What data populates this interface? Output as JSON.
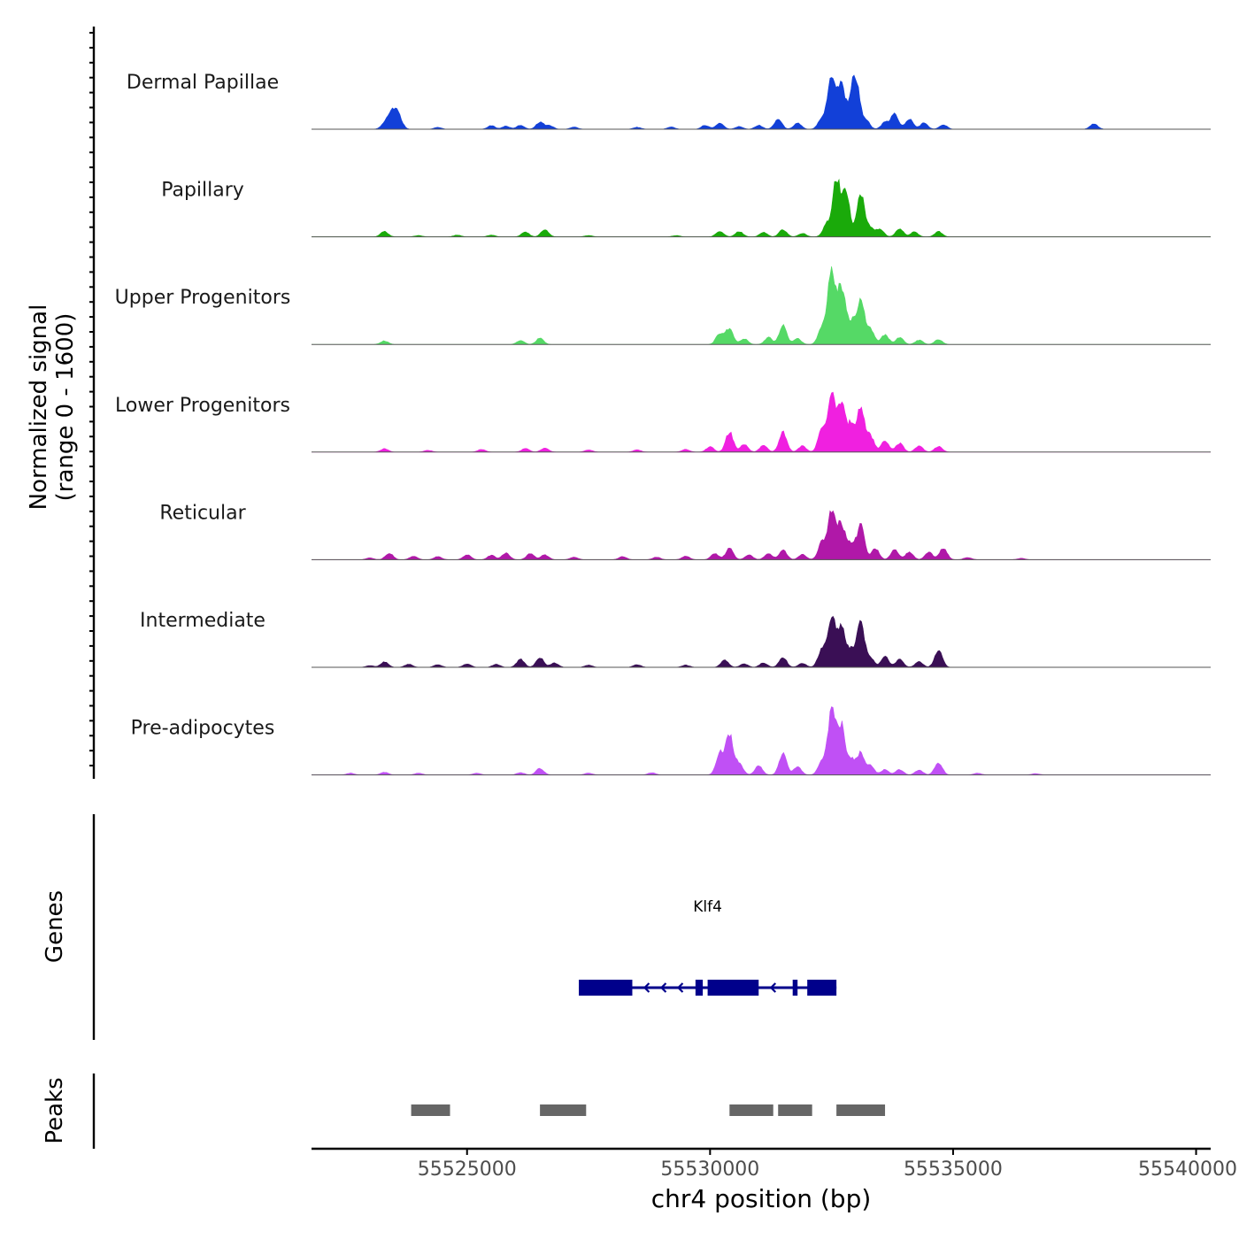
{
  "chart_data": {
    "type": "area",
    "title": "",
    "chromosome": "chr4",
    "xlabel": "chr4 position (bp)",
    "ylabel_line1": "Normalized signal",
    "ylabel_line2": "(range 0 - 1600)",
    "y_range": [
      0,
      1600
    ],
    "x_range": [
      55521800,
      55540300
    ],
    "x_ticks": [
      {
        "value": 55525000,
        "label": "55525000"
      },
      {
        "value": 55530000,
        "label": "55530000"
      },
      {
        "value": 55535000,
        "label": "55535000"
      },
      {
        "value": 55540000,
        "label": "55540000"
      }
    ],
    "tracks": [
      {
        "name": "Dermal Papillae",
        "color": "#1240d8",
        "peaks": [
          [
            55523300,
            95
          ],
          [
            55523400,
            200
          ],
          [
            55523500,
            300
          ],
          [
            55523600,
            220
          ],
          [
            55524400,
            40
          ],
          [
            55525500,
            80
          ],
          [
            55525800,
            70
          ],
          [
            55526100,
            90
          ],
          [
            55526500,
            160
          ],
          [
            55526700,
            80
          ],
          [
            55527200,
            50
          ],
          [
            55528500,
            45
          ],
          [
            55529200,
            50
          ],
          [
            55529900,
            90
          ],
          [
            55530200,
            140
          ],
          [
            55530600,
            60
          ],
          [
            55531000,
            90
          ],
          [
            55531400,
            230
          ],
          [
            55531800,
            140
          ],
          [
            55532300,
            250
          ],
          [
            55532500,
            1200
          ],
          [
            55532700,
            1000
          ],
          [
            55532900,
            450
          ],
          [
            55533000,
            1000
          ],
          [
            55533200,
            220
          ],
          [
            55533600,
            150
          ],
          [
            55533800,
            340
          ],
          [
            55534100,
            230
          ],
          [
            55534400,
            140
          ],
          [
            55534800,
            100
          ],
          [
            55537900,
            120
          ]
        ]
      },
      {
        "name": "Papillary",
        "color": "#1aaa0a",
        "peaks": [
          [
            55523300,
            120
          ],
          [
            55524000,
            30
          ],
          [
            55524800,
            40
          ],
          [
            55525500,
            40
          ],
          [
            55526200,
            110
          ],
          [
            55526600,
            160
          ],
          [
            55527500,
            30
          ],
          [
            55529300,
            30
          ],
          [
            55530200,
            130
          ],
          [
            55530600,
            120
          ],
          [
            55531100,
            100
          ],
          [
            55531500,
            160
          ],
          [
            55531900,
            80
          ],
          [
            55532400,
            280
          ],
          [
            55532600,
            1300
          ],
          [
            55532800,
            1000
          ],
          [
            55533100,
            1000
          ],
          [
            55533300,
            200
          ],
          [
            55533500,
            160
          ],
          [
            55533900,
            180
          ],
          [
            55534200,
            110
          ],
          [
            55534700,
            120
          ]
        ]
      },
      {
        "name": "Upper Progenitors",
        "color": "#55d966",
        "peaks": [
          [
            55523300,
            80
          ],
          [
            55526100,
            90
          ],
          [
            55526500,
            140
          ],
          [
            55530200,
            250
          ],
          [
            55530400,
            350
          ],
          [
            55530700,
            130
          ],
          [
            55531200,
            160
          ],
          [
            55531500,
            420
          ],
          [
            55531800,
            130
          ],
          [
            55532300,
            380
          ],
          [
            55532500,
            1650
          ],
          [
            55532700,
            1300
          ],
          [
            55532900,
            500
          ],
          [
            55533100,
            1000
          ],
          [
            55533300,
            350
          ],
          [
            55533600,
            220
          ],
          [
            55533900,
            160
          ],
          [
            55534300,
            100
          ],
          [
            55534700,
            110
          ]
        ]
      },
      {
        "name": "Lower Progenitors",
        "color": "#f020e0",
        "peaks": [
          [
            55523300,
            75
          ],
          [
            55524200,
            40
          ],
          [
            55525300,
            60
          ],
          [
            55526200,
            80
          ],
          [
            55526600,
            90
          ],
          [
            55527500,
            50
          ],
          [
            55528500,
            50
          ],
          [
            55529500,
            60
          ],
          [
            55530000,
            120
          ],
          [
            55530400,
            450
          ],
          [
            55530700,
            180
          ],
          [
            55531100,
            150
          ],
          [
            55531500,
            450
          ],
          [
            55531900,
            140
          ],
          [
            55532300,
            500
          ],
          [
            55532500,
            1300
          ],
          [
            55532700,
            1100
          ],
          [
            55532900,
            600
          ],
          [
            55533100,
            1000
          ],
          [
            55533300,
            350
          ],
          [
            55533600,
            260
          ],
          [
            55533900,
            200
          ],
          [
            55534300,
            140
          ],
          [
            55534700,
            130
          ]
        ]
      },
      {
        "name": "Reticular",
        "color": "#b018a8",
        "peaks": [
          [
            55523000,
            40
          ],
          [
            55523400,
            150
          ],
          [
            55523900,
            80
          ],
          [
            55524400,
            70
          ],
          [
            55525000,
            110
          ],
          [
            55525500,
            100
          ],
          [
            55525800,
            150
          ],
          [
            55526300,
            140
          ],
          [
            55526600,
            110
          ],
          [
            55527200,
            60
          ],
          [
            55528200,
            70
          ],
          [
            55528900,
            60
          ],
          [
            55529500,
            80
          ],
          [
            55530100,
            140
          ],
          [
            55530400,
            250
          ],
          [
            55530800,
            110
          ],
          [
            55531200,
            140
          ],
          [
            55531500,
            220
          ],
          [
            55531900,
            120
          ],
          [
            55532300,
            380
          ],
          [
            55532500,
            1050
          ],
          [
            55532700,
            800
          ],
          [
            55532900,
            350
          ],
          [
            55533100,
            750
          ],
          [
            55533400,
            250
          ],
          [
            55533800,
            220
          ],
          [
            55534100,
            180
          ],
          [
            55534500,
            170
          ],
          [
            55534800,
            260
          ],
          [
            55535300,
            50
          ],
          [
            55536400,
            30
          ]
        ]
      },
      {
        "name": "Intermediate",
        "color": "#3a0f55",
        "peaks": [
          [
            55523000,
            40
          ],
          [
            55523300,
            120
          ],
          [
            55523800,
            70
          ],
          [
            55524400,
            60
          ],
          [
            55525000,
            80
          ],
          [
            55525600,
            70
          ],
          [
            55526100,
            180
          ],
          [
            55526500,
            220
          ],
          [
            55526800,
            100
          ],
          [
            55527500,
            50
          ],
          [
            55528500,
            60
          ],
          [
            55529500,
            50
          ],
          [
            55530300,
            160
          ],
          [
            55530700,
            80
          ],
          [
            55531100,
            100
          ],
          [
            55531500,
            220
          ],
          [
            55531900,
            90
          ],
          [
            55532300,
            400
          ],
          [
            55532500,
            1100
          ],
          [
            55532700,
            900
          ],
          [
            55532900,
            400
          ],
          [
            55533100,
            1000
          ],
          [
            55533300,
            200
          ],
          [
            55533600,
            240
          ],
          [
            55533900,
            180
          ],
          [
            55534300,
            130
          ],
          [
            55534700,
            400
          ]
        ]
      },
      {
        "name": "Pre-adipocytes",
        "color": "#c050f5",
        "peaks": [
          [
            55522600,
            40
          ],
          [
            55523300,
            60
          ],
          [
            55524000,
            40
          ],
          [
            55525200,
            40
          ],
          [
            55526100,
            50
          ],
          [
            55526500,
            150
          ],
          [
            55527500,
            40
          ],
          [
            55528800,
            50
          ],
          [
            55530200,
            500
          ],
          [
            55530400,
            900
          ],
          [
            55530600,
            250
          ],
          [
            55531000,
            200
          ],
          [
            55531500,
            500
          ],
          [
            55531800,
            180
          ],
          [
            55532300,
            300
          ],
          [
            55532500,
            1450
          ],
          [
            55532700,
            1100
          ],
          [
            55532900,
            350
          ],
          [
            55533100,
            500
          ],
          [
            55533300,
            200
          ],
          [
            55533600,
            120
          ],
          [
            55533900,
            120
          ],
          [
            55534300,
            110
          ],
          [
            55534700,
            280
          ],
          [
            55535500,
            40
          ],
          [
            55536700,
            30
          ]
        ]
      }
    ],
    "genes": {
      "track_label": "Genes",
      "color": "#00008b",
      "items": [
        {
          "name": "Klf4",
          "strand": "-",
          "start": 55527300,
          "end": 55532600,
          "exons": [
            [
              55527300,
              55528400
            ],
            [
              55529700,
              55529850
            ],
            [
              55529950,
              55531000
            ],
            [
              55531700,
              55531800
            ],
            [
              55532000,
              55532600
            ]
          ]
        }
      ]
    },
    "peaks_track": {
      "track_label": "Peaks",
      "color": "#666666",
      "regions": [
        [
          55523850,
          55524650
        ],
        [
          55526500,
          55527450
        ],
        [
          55530400,
          55531300
        ],
        [
          55531400,
          55532100
        ],
        [
          55532600,
          55533600
        ]
      ]
    }
  }
}
